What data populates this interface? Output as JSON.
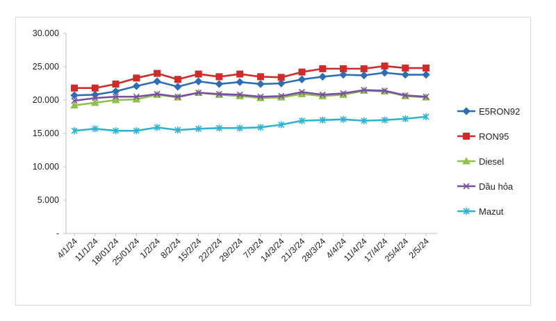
{
  "chart_data": {
    "type": "line",
    "title": "",
    "xlabel": "",
    "ylabel": "",
    "ylim": [
      0,
      30000
    ],
    "y_ticks": [
      {
        "value": 0,
        "label": "-"
      },
      {
        "value": 5000,
        "label": "5.000"
      },
      {
        "value": 10000,
        "label": "10.000"
      },
      {
        "value": 15000,
        "label": "15.000"
      },
      {
        "value": 20000,
        "label": "20.000"
      },
      {
        "value": 25000,
        "label": "25.000"
      },
      {
        "value": 30000,
        "label": "30.000"
      }
    ],
    "grid": false,
    "legend": "right",
    "categories": [
      "4/1/24",
      "11/1/24",
      "18/01/24",
      "25/01/24",
      "1/2/24",
      "8/2/24",
      "15/2/24",
      "22/2/24",
      "29/2/24",
      "7/3/24",
      "14/3/24",
      "21/3/24",
      "28/3/24",
      "4/4/24",
      "11/4/24",
      "17/4/24",
      "25/4/24",
      "2/5/24"
    ],
    "series": [
      {
        "name": "E5RON92",
        "color": "#2e6db4",
        "marker": "diamond",
        "values": [
          20700,
          20800,
          21300,
          22100,
          22800,
          22000,
          22800,
          22400,
          22700,
          22400,
          22500,
          23100,
          23500,
          23800,
          23700,
          24100,
          23800,
          23800
        ]
      },
      {
        "name": "RON95",
        "color": "#d02b2b",
        "marker": "square",
        "values": [
          21800,
          21800,
          22400,
          23300,
          24000,
          23100,
          23900,
          23500,
          23900,
          23500,
          23400,
          24200,
          24700,
          24700,
          24700,
          25100,
          24800,
          24800
        ]
      },
      {
        "name": "Diesel",
        "color": "#8fc04a",
        "marker": "triangle",
        "values": [
          19200,
          19600,
          20000,
          20100,
          20800,
          20400,
          21100,
          20800,
          20600,
          20300,
          20400,
          20900,
          20600,
          20800,
          21400,
          21300,
          20600,
          20400
        ]
      },
      {
        "name": "Dầu hỏa",
        "color": "#7a4ea1",
        "marker": "x",
        "values": [
          19900,
          20300,
          20500,
          20500,
          20900,
          20500,
          21100,
          20900,
          20800,
          20500,
          20600,
          21200,
          20800,
          21000,
          21500,
          21400,
          20700,
          20500
        ]
      },
      {
        "name": "Mazut",
        "color": "#2bb3d1",
        "marker": "star",
        "values": [
          15400,
          15700,
          15400,
          15400,
          15900,
          15500,
          15700,
          15800,
          15800,
          15900,
          16300,
          16900,
          17000,
          17100,
          16900,
          17000,
          17200,
          17500
        ]
      }
    ]
  }
}
